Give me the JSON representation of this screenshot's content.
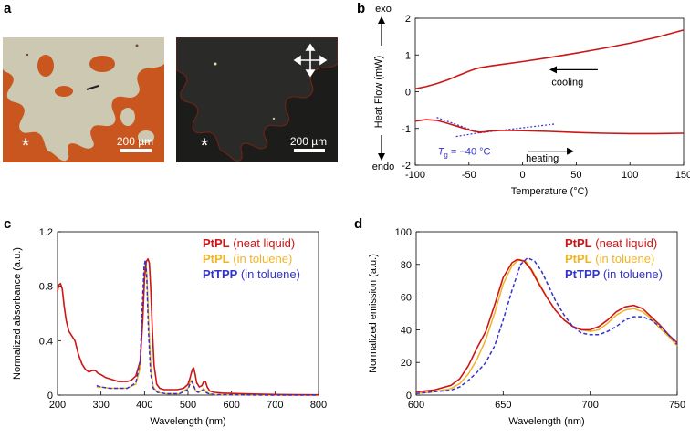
{
  "panels": {
    "a": {
      "label": "a",
      "left": {
        "scalebar": "200 µm",
        "marker": "*"
      },
      "right": {
        "scalebar": "200 µm",
        "marker": "*"
      }
    },
    "b": {
      "label": "b"
    },
    "c": {
      "label": "c"
    },
    "d": {
      "label": "d"
    }
  },
  "colors": {
    "neat": "#cc1616",
    "toluene": "#f0b429",
    "tpp": "#3333cc",
    "tg_line": "#3333cc",
    "micrograph_orange": "#c8561e",
    "micrograph_cream": "#c9c4ae",
    "micrograph_dark": "#1c1c1a"
  },
  "chart_data": [
    {
      "id": "b",
      "type": "line",
      "title": "",
      "xlabel": "Temperature (°C)",
      "ylabel": "Heat Flow (mW)",
      "xlim": [
        -100,
        150
      ],
      "ylim": [
        -2,
        2
      ],
      "xticks": [
        "-100",
        "-50",
        "0",
        "50",
        "100",
        "150"
      ],
      "yticks": [
        "-2",
        "-1",
        "0",
        "1",
        "2"
      ],
      "y_exo_label": "exo",
      "y_endo_label": "endo",
      "series": [
        {
          "name": "cooling",
          "x": [
            -100,
            -90,
            -80,
            -70,
            -60,
            -50,
            -45,
            -40,
            -30,
            -20,
            0,
            25,
            50,
            75,
            100,
            125,
            150
          ],
          "y": [
            0.08,
            0.14,
            0.22,
            0.32,
            0.44,
            0.56,
            0.61,
            0.65,
            0.7,
            0.74,
            0.82,
            0.93,
            1.05,
            1.18,
            1.32,
            1.48,
            1.68
          ]
        },
        {
          "name": "heating",
          "x": [
            -100,
            -90,
            -80,
            -70,
            -60,
            -50,
            -45,
            -40,
            -35,
            -30,
            -20,
            0,
            25,
            50,
            75,
            100,
            125,
            150
          ],
          "y": [
            -0.8,
            -0.76,
            -0.78,
            -0.86,
            -0.95,
            -1.04,
            -1.08,
            -1.1,
            -1.09,
            -1.07,
            -1.05,
            -1.06,
            -1.08,
            -1.11,
            -1.13,
            -1.14,
            -1.14,
            -1.13
          ]
        }
      ],
      "tangents": [
        {
          "x": [
            -80,
            -40
          ],
          "y": [
            -0.7,
            -1.12
          ]
        },
        {
          "x": [
            -62,
            -37
          ],
          "y": [
            -1.22,
            -1.1
          ]
        },
        {
          "x": [
            -40,
            30
          ],
          "y": [
            -1.12,
            -0.88
          ]
        }
      ],
      "annotations": {
        "cooling": "cooling",
        "heating": "heating",
        "tg_symbol": "T",
        "tg_subscript": "g",
        "tg_value": " = −40 °C"
      }
    },
    {
      "id": "c",
      "type": "line",
      "title": "",
      "xlabel": "Wavelength (nm)",
      "ylabel": "Normalized absorbance (a.u.)",
      "xlim": [
        200,
        800
      ],
      "ylim": [
        0,
        1.2
      ],
      "xticks": [
        "200",
        "300",
        "400",
        "500",
        "600",
        "700",
        "800"
      ],
      "yticks": [
        "0",
        "0.4",
        "0.8",
        "1.2"
      ],
      "legend_position": "top-right",
      "series": [
        {
          "name": "PtPL",
          "suffix": " (neat liquid)",
          "style": "solid",
          "x": [
            200,
            203,
            207,
            211,
            215,
            220,
            226,
            232,
            240,
            248,
            256,
            264,
            272,
            280,
            287,
            293,
            300,
            310,
            320,
            330,
            340,
            350,
            360,
            370,
            380,
            390,
            396,
            400,
            404,
            408,
            411,
            414,
            418,
            422,
            428,
            435,
            445,
            460,
            475,
            490,
            500,
            505,
            510,
            513,
            516,
            520,
            526,
            532,
            536,
            540,
            544,
            550,
            560,
            580,
            600,
            650,
            700,
            750,
            800
          ],
          "y": [
            0.76,
            0.81,
            0.82,
            0.78,
            0.66,
            0.55,
            0.47,
            0.44,
            0.4,
            0.3,
            0.23,
            0.19,
            0.17,
            0.18,
            0.18,
            0.16,
            0.15,
            0.13,
            0.12,
            0.11,
            0.1,
            0.1,
            0.1,
            0.11,
            0.14,
            0.25,
            0.55,
            0.85,
            0.98,
            1.0,
            0.97,
            0.8,
            0.48,
            0.22,
            0.08,
            0.05,
            0.04,
            0.04,
            0.04,
            0.05,
            0.08,
            0.13,
            0.19,
            0.2,
            0.16,
            0.09,
            0.06,
            0.07,
            0.1,
            0.1,
            0.06,
            0.03,
            0.02,
            0.015,
            0.012,
            0.008,
            0.005,
            0.003,
            0.002
          ]
        },
        {
          "name": "PtPL",
          "suffix": " (in toluene)",
          "style": "solid",
          "x": [
            290,
            300,
            320,
            340,
            360,
            380,
            390,
            395,
            400,
            403,
            406,
            410,
            415,
            420,
            430,
            450,
            480,
            500,
            505,
            508,
            512,
            516,
            522,
            530,
            536,
            540,
            548,
            560,
            600,
            700,
            800
          ],
          "y": [
            0.06,
            0.06,
            0.05,
            0.05,
            0.05,
            0.08,
            0.2,
            0.55,
            0.92,
            0.98,
            0.85,
            0.5,
            0.18,
            0.06,
            0.02,
            0.01,
            0.01,
            0.05,
            0.1,
            0.11,
            0.08,
            0.04,
            0.02,
            0.03,
            0.05,
            0.03,
            0.01,
            0.004,
            0.002,
            0.0,
            0.0
          ]
        },
        {
          "name": "PtTPP",
          "suffix": " (in toluene)",
          "style": "dashed",
          "x": [
            290,
            300,
            320,
            340,
            360,
            380,
            390,
            395,
            399,
            402,
            405,
            409,
            414,
            420,
            430,
            450,
            480,
            500,
            505,
            509,
            513,
            518,
            524,
            530,
            536,
            540,
            548,
            560,
            600,
            700,
            800
          ],
          "y": [
            0.07,
            0.06,
            0.05,
            0.05,
            0.05,
            0.09,
            0.25,
            0.65,
            0.95,
            0.99,
            0.88,
            0.48,
            0.16,
            0.05,
            0.02,
            0.01,
            0.01,
            0.04,
            0.09,
            0.1,
            0.07,
            0.03,
            0.02,
            0.03,
            0.04,
            0.02,
            0.01,
            0.004,
            0.002,
            0.0,
            0.0
          ]
        }
      ]
    },
    {
      "id": "d",
      "type": "line",
      "title": "",
      "xlabel": "Wavelength (nm)",
      "ylabel": "Normalized emission (a.u.)",
      "xlim": [
        600,
        750
      ],
      "ylim": [
        0,
        100
      ],
      "xticks": [
        "600",
        "650",
        "700",
        "750"
      ],
      "yticks": [
        "0",
        "20",
        "40",
        "60",
        "80",
        "100"
      ],
      "legend_position": "top-right",
      "series": [
        {
          "name": "PtPL",
          "suffix": " (neat liquid)",
          "style": "solid",
          "x": [
            600,
            610,
            620,
            625,
            630,
            635,
            640,
            645,
            650,
            655,
            658,
            662,
            666,
            670,
            675,
            680,
            685,
            690,
            695,
            700,
            705,
            710,
            715,
            720,
            725,
            730,
            735,
            740,
            745,
            750
          ],
          "y": [
            2,
            3,
            6,
            10,
            18,
            29,
            39,
            55,
            72,
            81,
            83,
            82,
            77,
            69,
            60,
            52,
            46,
            42,
            40,
            40,
            42,
            46,
            51,
            54,
            55,
            53,
            48,
            43,
            37,
            32
          ]
        },
        {
          "name": "PtPL",
          "suffix": " (in toluene)",
          "style": "solid",
          "x": [
            600,
            610,
            620,
            625,
            630,
            635,
            640,
            645,
            650,
            655,
            659,
            663,
            667,
            671,
            675,
            680,
            685,
            690,
            695,
            700,
            705,
            710,
            715,
            720,
            725,
            730,
            735,
            740,
            745,
            750
          ],
          "y": [
            1,
            2,
            4,
            7,
            13,
            22,
            34,
            50,
            68,
            79,
            83,
            82,
            76,
            68,
            60,
            52,
            46,
            42,
            40,
            39,
            40,
            44,
            49,
            52,
            53,
            51,
            47,
            41,
            36,
            30
          ]
        },
        {
          "name": "PtTPP",
          "suffix": " (in toluene)",
          "style": "dashed",
          "x": [
            600,
            610,
            620,
            625,
            630,
            635,
            640,
            645,
            650,
            655,
            660,
            664,
            668,
            672,
            676,
            680,
            685,
            690,
            695,
            700,
            705,
            710,
            715,
            720,
            725,
            730,
            735,
            740,
            745,
            750
          ],
          "y": [
            1,
            2,
            3,
            5,
            9,
            14,
            20,
            30,
            46,
            64,
            80,
            84,
            82,
            76,
            67,
            58,
            49,
            42,
            38,
            37,
            37,
            39,
            42,
            46,
            48,
            48,
            46,
            42,
            37,
            31
          ]
        }
      ]
    }
  ]
}
